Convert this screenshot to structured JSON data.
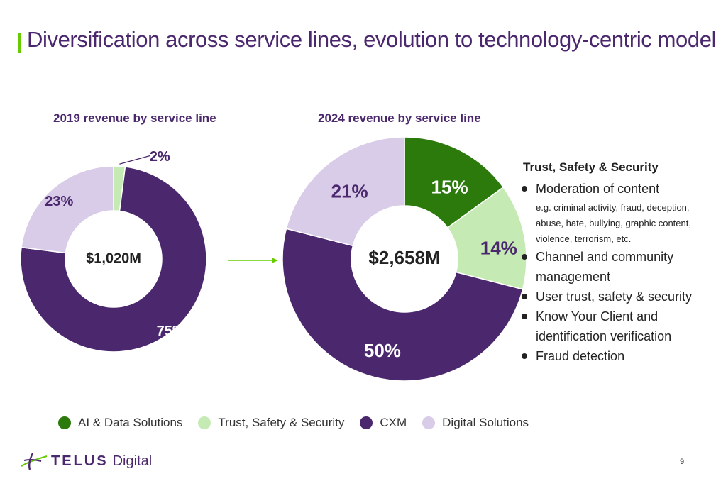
{
  "slide": {
    "title": "Diversification across service lines, evolution to technology-centric model",
    "page_number": "9"
  },
  "chart_data": [
    {
      "type": "pie",
      "title": "2019 revenue by service line",
      "center_label": "$1,020M",
      "slices": [
        {
          "name": "Trust, Safety & Security",
          "value": 2,
          "label": "2%",
          "color": "#c5eab4"
        },
        {
          "name": "CXM",
          "value": 75,
          "label": "75%",
          "color": "#4b286d"
        },
        {
          "name": "Digital Solutions",
          "value": 23,
          "label": "23%",
          "color": "#d9cce8"
        }
      ]
    },
    {
      "type": "pie",
      "title": "2024 revenue by service line",
      "center_label": "$2,658M",
      "slices": [
        {
          "name": "AI & Data Solutions",
          "value": 15,
          "label": "15%",
          "color": "#2b7a0b"
        },
        {
          "name": "Trust, Safety & Security",
          "value": 14,
          "label": "14%",
          "color": "#c5eab4"
        },
        {
          "name": "CXM",
          "value": 50,
          "label": "50%",
          "color": "#4b286d"
        },
        {
          "name": "Digital Solutions",
          "value": 21,
          "label": "21%",
          "color": "#d9cce8"
        }
      ]
    }
  ],
  "side_panel": {
    "heading": "Trust, Safety & Security",
    "items": [
      {
        "text": "Moderation of content",
        "sub": "e.g. criminal activity, fraud, deception, abuse, hate, bullying, graphic content, violence, terrorism, etc."
      },
      {
        "text": "Channel and community management"
      },
      {
        "text": "User trust, safety & security"
      },
      {
        "text": "Know Your Client and identification verification"
      },
      {
        "text": "Fraud detection"
      }
    ]
  },
  "legend": [
    {
      "label": "AI & Data Solutions",
      "color": "#2b7a0b"
    },
    {
      "label": "Trust, Safety & Security",
      "color": "#c5eab4"
    },
    {
      "label": "CXM",
      "color": "#4b286d"
    },
    {
      "label": "Digital Solutions",
      "color": "#d9cce8"
    }
  ],
  "logo": {
    "brand": "TELUS",
    "sub": "Digital"
  },
  "colors": {
    "accent_bar": "#66cc00",
    "arrow": "#66cc00",
    "title": "#4b286d"
  }
}
